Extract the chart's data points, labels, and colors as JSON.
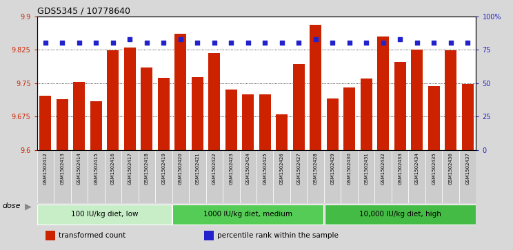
{
  "title": "GDS5345 / 10778640",
  "samples": [
    "GSM1502412",
    "GSM1502413",
    "GSM1502414",
    "GSM1502415",
    "GSM1502416",
    "GSM1502417",
    "GSM1502418",
    "GSM1502419",
    "GSM1502420",
    "GSM1502421",
    "GSM1502422",
    "GSM1502423",
    "GSM1502424",
    "GSM1502425",
    "GSM1502426",
    "GSM1502427",
    "GSM1502428",
    "GSM1502429",
    "GSM1502430",
    "GSM1502431",
    "GSM1502432",
    "GSM1502433",
    "GSM1502434",
    "GSM1502435",
    "GSM1502436",
    "GSM1502437"
  ],
  "bar_values": [
    9.722,
    9.714,
    9.752,
    9.71,
    9.824,
    9.83,
    9.785,
    9.762,
    9.86,
    9.763,
    9.817,
    9.736,
    9.724,
    9.724,
    9.68,
    9.793,
    9.881,
    9.716,
    9.74,
    9.76,
    9.855,
    9.797,
    9.825,
    9.743,
    9.824,
    9.748
  ],
  "percentile_values": [
    80,
    80,
    80,
    80,
    80,
    83,
    80,
    80,
    83,
    80,
    80,
    80,
    80,
    80,
    80,
    80,
    83,
    80,
    80,
    80,
    80,
    83,
    80,
    80,
    80,
    80
  ],
  "ylim_left": [
    9.6,
    9.9
  ],
  "ylim_right": [
    0,
    100
  ],
  "bar_color": "#cc2200",
  "dot_color": "#2222cc",
  "background_color": "#d8d8d8",
  "plot_bg_color": "#ffffff",
  "tick_bg_color": "#cccccc",
  "grid_color": "#000000",
  "groups": [
    {
      "label": "100 IU/kg diet, low",
      "start": 0,
      "end": 8,
      "color": "#c8eec8"
    },
    {
      "label": "1000 IU/kg diet, medium",
      "start": 8,
      "end": 17,
      "color": "#55cc55"
    },
    {
      "label": "10,000 IU/kg diet, high",
      "start": 17,
      "end": 26,
      "color": "#44bb44"
    }
  ],
  "dose_label": "dose",
  "legend": [
    {
      "label": "transformed count",
      "color": "#cc2200"
    },
    {
      "label": "percentile rank within the sample",
      "color": "#2222cc"
    }
  ],
  "yticks_left": [
    9.6,
    9.675,
    9.75,
    9.825,
    9.9
  ],
  "yticks_right": [
    0,
    25,
    50,
    75,
    100
  ],
  "ytick_labels_right": [
    "0",
    "25",
    "50",
    "75",
    "100%"
  ]
}
